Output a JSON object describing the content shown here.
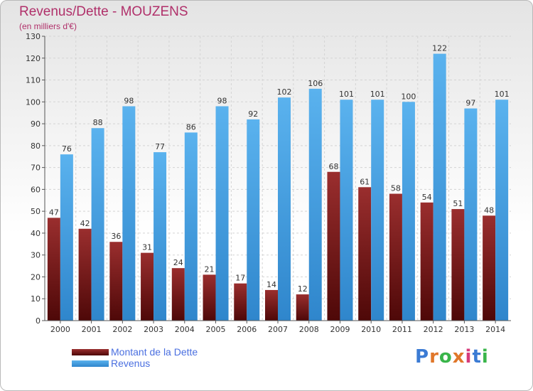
{
  "title": "Revenus/Dette - MOUZENS",
  "subtitle": "(en milliers d'€)",
  "legend": [
    {
      "label": "Montant de la Dette",
      "color": "#7a1a1a"
    },
    {
      "label": "Revenus",
      "color": "#4aa3e6"
    }
  ],
  "logo": {
    "text": "Proxiti",
    "colors": [
      "#3b7bd4",
      "#e0772a",
      "#39b54a",
      "#e0772a",
      "#d63a7a",
      "#3b7bd4",
      "#39b54a"
    ]
  },
  "chart_data": {
    "type": "bar",
    "title": "Revenus/Dette - MOUZENS",
    "subtitle": "(en milliers d'€)",
    "categories": [
      "2000",
      "2001",
      "2002",
      "2003",
      "2004",
      "2005",
      "2006",
      "2007",
      "2008",
      "2009",
      "2010",
      "2011",
      "2012",
      "2013",
      "2014"
    ],
    "series": [
      {
        "name": "Montant de la Dette",
        "color": "#7a1a1a",
        "values": [
          47,
          42,
          36,
          31,
          24,
          21,
          17,
          14,
          12,
          68,
          61,
          58,
          54,
          51,
          48
        ]
      },
      {
        "name": "Revenus",
        "color": "#4aa3e6",
        "values": [
          76,
          88,
          98,
          77,
          86,
          98,
          92,
          102,
          106,
          101,
          101,
          100,
          122,
          97,
          101
        ]
      }
    ],
    "ylim": [
      0,
      130
    ],
    "yticks": [
      0,
      10,
      20,
      30,
      40,
      50,
      60,
      70,
      80,
      90,
      100,
      110,
      120,
      130
    ],
    "grid": true,
    "legend_position": "bottom-left"
  }
}
